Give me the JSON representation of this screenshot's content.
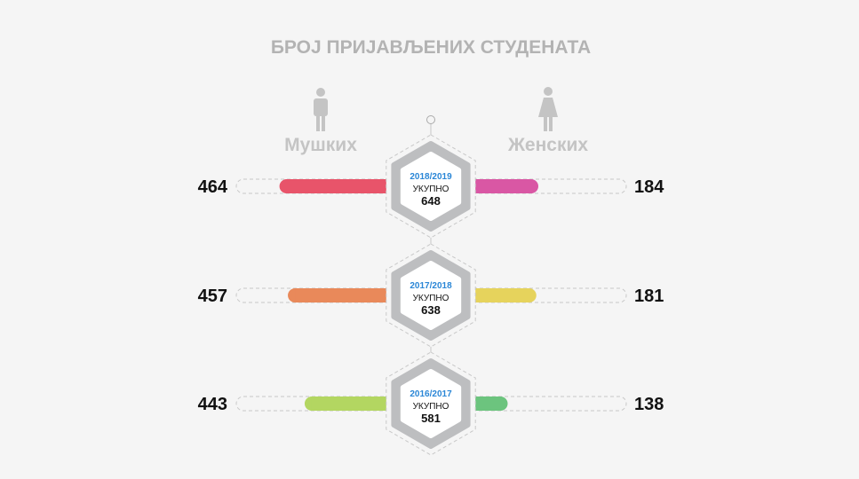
{
  "chart_data": {
    "type": "bar",
    "title": "БРОЈ ПРИЈАВЉЕНИХ СТУДЕНАТА",
    "series_labels": {
      "male": "Мушких",
      "female": "Женских"
    },
    "total_label": "УКУПНО",
    "rows": [
      {
        "year": "2018/2019",
        "male": 464,
        "female": 184,
        "total": 648,
        "male_color": "#e8546a",
        "female_color": "#d957a4"
      },
      {
        "year": "2017/2018",
        "male": 457,
        "female": 181,
        "total": 638,
        "male_color": "#e9895a",
        "female_color": "#e6d35c"
      },
      {
        "year": "2016/2017",
        "male": 443,
        "female": 138,
        "total": 581,
        "male_color": "#b3d661",
        "female_color": "#6cc47e"
      }
    ]
  }
}
